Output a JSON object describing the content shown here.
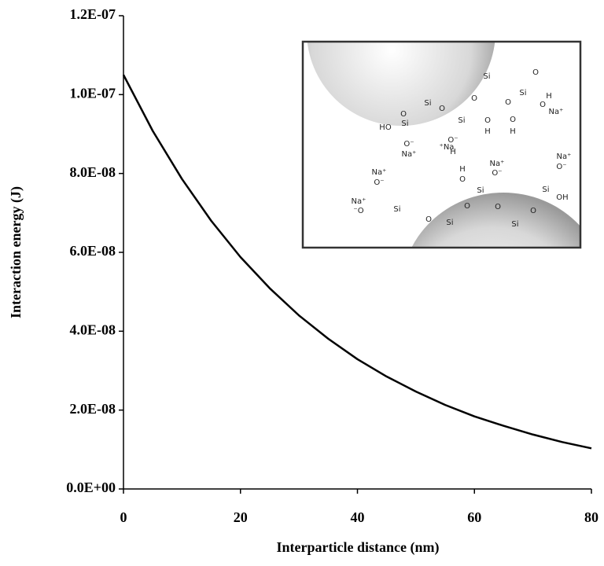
{
  "chart_data": {
    "type": "line",
    "xlabel": "Interparticle distance (nm)",
    "ylabel": "Interaction energy (J)",
    "x": [
      0,
      5,
      10,
      15,
      20,
      25,
      30,
      35,
      40,
      45,
      50,
      55,
      60,
      65,
      70,
      75,
      80
    ],
    "series": [
      {
        "color": "#000000",
        "values": [
          1.05e-07,
          9.08e-08,
          7.86e-08,
          6.8e-08,
          5.88e-08,
          5.09e-08,
          4.4e-08,
          3.81e-08,
          3.29e-08,
          2.85e-08,
          2.47e-08,
          2.13e-08,
          1.84e-08,
          1.6e-08,
          1.38e-08,
          1.19e-08,
          1.03e-08
        ]
      }
    ],
    "xlim": [
      0,
      80
    ],
    "xticks": [
      0,
      20,
      40,
      60,
      80
    ],
    "ylim": [
      0,
      1.2e-07
    ],
    "yticks": [
      {
        "value": 0,
        "label": "0.0E+00"
      },
      {
        "value": 2e-08,
        "label": "2.0E-08"
      },
      {
        "value": 4e-08,
        "label": "4.0E-08"
      },
      {
        "value": 6e-08,
        "label": "6.0E-08"
      },
      {
        "value": 8e-08,
        "label": "8.0E-08"
      },
      {
        "value": 1e-07,
        "label": "1.0E-07"
      },
      {
        "value": 1.2e-07,
        "label": "1.2E-07"
      }
    ],
    "grid": false
  },
  "inset": {
    "labels": [
      "Si",
      "O",
      "Si",
      "O",
      "O",
      "H",
      "Na⁺",
      "O",
      "H",
      "O",
      "Si",
      "O⁻",
      "H",
      "O",
      "H",
      "⁺Na",
      "Si",
      "O",
      "O",
      "Si",
      "HO",
      "O⁻",
      "Na⁺",
      "Na⁺",
      "O⁻",
      "Na⁺",
      "⁻O",
      "Si",
      "O",
      "Si",
      "O",
      "H",
      "O",
      "Si",
      "Na⁺",
      "O⁻",
      "O",
      "Si",
      "O",
      "Si",
      "OH",
      "Na⁺",
      "O⁻"
    ]
  }
}
